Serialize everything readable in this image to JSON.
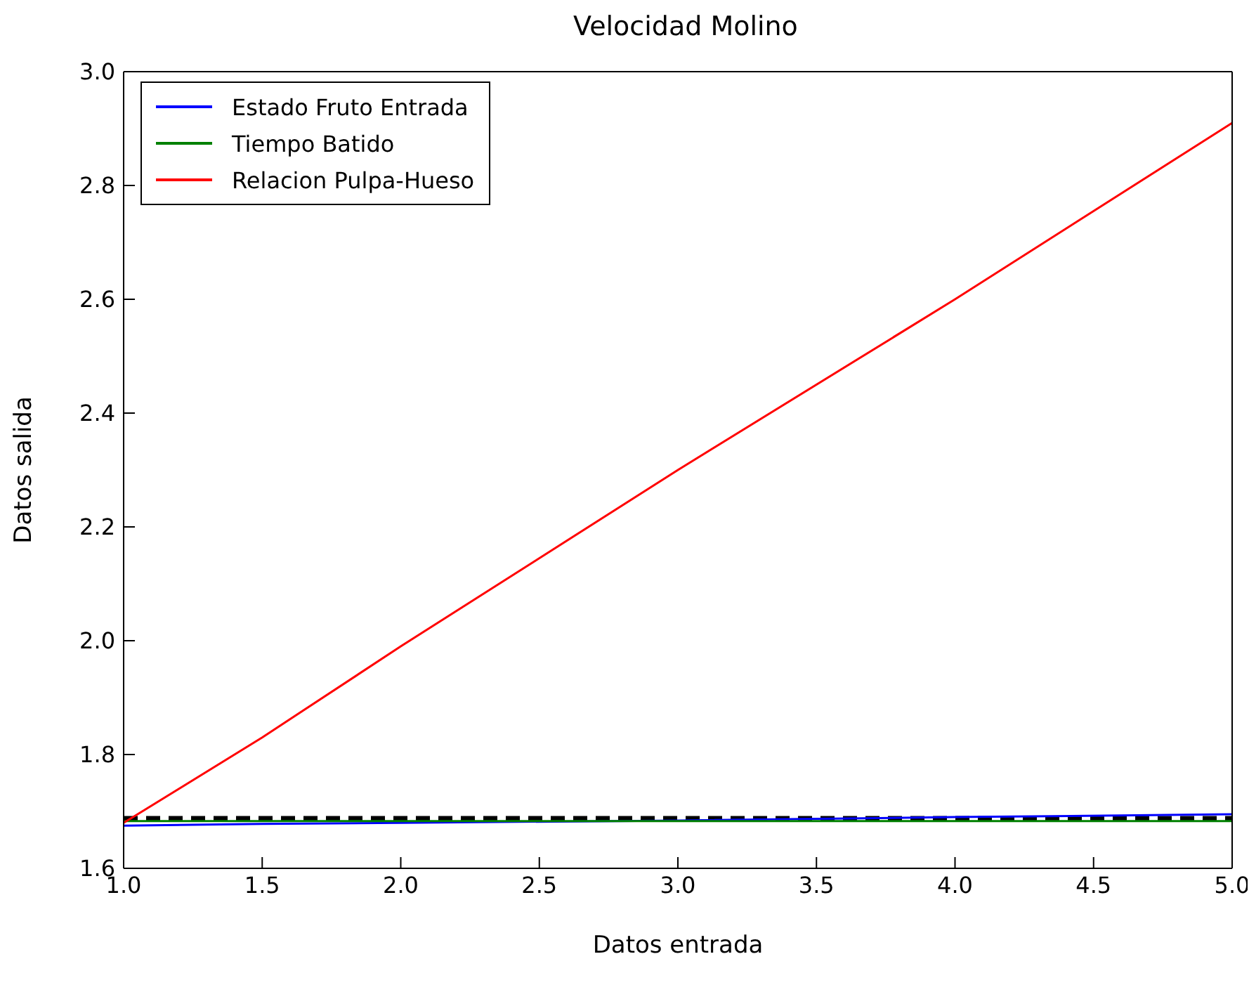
{
  "chart_data": {
    "type": "line",
    "title": "Velocidad Molino",
    "xlabel": "Datos entrada",
    "ylabel": "Datos salida",
    "xlim": [
      1.0,
      5.0
    ],
    "xticks": [
      {
        "value": 1,
        "label": "1.0"
      },
      {
        "value": 1.5,
        "label": "1.5"
      },
      {
        "value": 2,
        "label": "2.0"
      },
      {
        "value": 2.5,
        "label": "2.5"
      },
      {
        "value": 3,
        "label": "3.0"
      },
      {
        "value": 3.5,
        "label": "3.5"
      },
      {
        "value": 4,
        "label": "4.0"
      },
      {
        "value": 4.5,
        "label": "4.5"
      },
      {
        "value": 5,
        "label": "5.0"
      }
    ],
    "ylim": [
      1.6,
      3.0
    ],
    "yticks": [
      {
        "value": 1.6,
        "label": "1.6"
      },
      {
        "value": 1.8,
        "label": "1.8"
      },
      {
        "value": 2.0,
        "label": "2.0"
      },
      {
        "value": 2.2,
        "label": "2.2"
      },
      {
        "value": 2.4,
        "label": "2.4"
      },
      {
        "value": 2.6,
        "label": "2.6"
      },
      {
        "value": 2.8,
        "label": "2.8"
      },
      {
        "value": 3.0,
        "label": "3.0"
      }
    ],
    "x": [
      1,
      1.5,
      2,
      3,
      4,
      5
    ],
    "series": [
      {
        "name": "Estado Fruto Entrada",
        "color": "#0000ff",
        "values": [
          1.675,
          1.678,
          1.68,
          1.684,
          1.69,
          1.695
        ]
      },
      {
        "name": "Tiempo Batido",
        "color": "#008000",
        "values": [
          1.683,
          1.683,
          1.683,
          1.683,
          1.683,
          1.683
        ]
      },
      {
        "name": "Relacion Pulpa-Hueso",
        "color": "#ff0000",
        "values": [
          1.68,
          1.83,
          1.99,
          2.3,
          2.6,
          2.91
        ]
      }
    ],
    "ref_lines": [
      {
        "axis": "y",
        "value": 1.687,
        "color": "#000000",
        "line_style": "dashed"
      }
    ],
    "grid": false,
    "legend": "top left",
    "marker": "none",
    "line_style": "solid"
  }
}
